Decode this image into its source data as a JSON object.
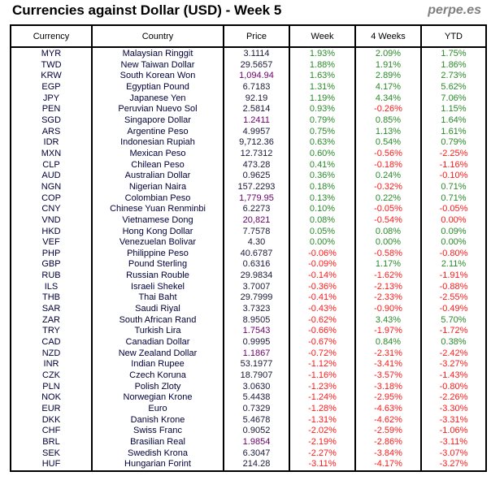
{
  "title": "Currencies against Dollar (USD) - Week 5",
  "brand": "perpe.es",
  "colors": {
    "positive": "#2a8a2a",
    "negative": "#ff1a1a"
  },
  "headers": [
    "Currency",
    "Country",
    "Price",
    "Week",
    "4 Weeks",
    "YTD"
  ],
  "rows": [
    [
      "MYR",
      "Malaysian Ringgit",
      "3.1114",
      "1.93%",
      "2.09%",
      "1.75%"
    ],
    [
      "TWD",
      "New Taiwan Dollar",
      "29.5657",
      "1.88%",
      "1.91%",
      "1.86%"
    ],
    [
      "KRW",
      "South Korean Won",
      "1,094.94",
      "1.63%",
      "2.89%",
      "2.73%"
    ],
    [
      "EGP",
      "Egyptian Pound",
      "6.7183",
      "1.31%",
      "4.17%",
      "5.62%"
    ],
    [
      "JPY",
      "Japanese Yen",
      "92.19",
      "1.19%",
      "4.34%",
      "7.06%"
    ],
    [
      "PEN",
      "Peruvian Nuevo Sol",
      "2.5814",
      "0.93%",
      "-0.26%",
      "1.15%"
    ],
    [
      "SGD",
      "Singapore Dollar",
      "1.2411",
      "0.79%",
      "0.85%",
      "1.64%"
    ],
    [
      "ARS",
      "Argentine Peso",
      "4.9957",
      "0.75%",
      "1.13%",
      "1.61%"
    ],
    [
      "IDR",
      "Indonesian Rupiah",
      "9,712.36",
      "0.63%",
      "0.54%",
      "0.79%"
    ],
    [
      "MXN",
      "Mexican Peso",
      "12.7312",
      "0.60%",
      "-0.56%",
      "-2.25%"
    ],
    [
      "CLP",
      "Chilean Peso",
      "473.28",
      "0.41%",
      "-0.18%",
      "-1.16%"
    ],
    [
      "AUD",
      "Australian Dollar",
      "0.9625",
      "0.36%",
      "0.24%",
      "-0.10%"
    ],
    [
      "NGN",
      "Nigerian Naira",
      "157.2293",
      "0.18%",
      "-0.32%",
      "0.71%"
    ],
    [
      "COP",
      "Colombian Peso",
      "1,779.95",
      "0.13%",
      "0.22%",
      "0.71%"
    ],
    [
      "CNY",
      "Chinese Yuan Renminbi",
      "6.2273",
      "0.10%",
      "-0.05%",
      "-0.05%"
    ],
    [
      "VND",
      "Vietnamese Dong",
      "20,821",
      "0.08%",
      "-0.54%",
      "0.00%"
    ],
    [
      "HKD",
      "Hong Kong Dollar",
      "7.7578",
      "0.05%",
      "0.08%",
      "0.09%"
    ],
    [
      "VEF",
      "Venezuelan Bolivar",
      "4.30",
      "0.00%",
      "0.00%",
      "0.00%"
    ],
    [
      "PHP",
      "Philippine Peso",
      "40.6787",
      "-0.06%",
      "-0.58%",
      "-0.80%"
    ],
    [
      "GBP",
      "Pound Sterling",
      "0.6316",
      "-0.09%",
      "1.17%",
      "2.11%"
    ],
    [
      "RUB",
      "Russian Rouble",
      "29.9834",
      "-0.14%",
      "-1.62%",
      "-1.91%"
    ],
    [
      "ILS",
      "Israeli Shekel",
      "3.7007",
      "-0.36%",
      "-2.13%",
      "-0.88%"
    ],
    [
      "THB",
      "Thai Baht",
      "29.7999",
      "-0.41%",
      "-2.33%",
      "-2.55%"
    ],
    [
      "SAR",
      "Saudi Riyal",
      "3.7323",
      "-0.43%",
      "-0.90%",
      "-0.49%"
    ],
    [
      "ZAR",
      "South African Rand",
      "8.9505",
      "-0.62%",
      "3.43%",
      "5.70%"
    ],
    [
      "TRY",
      "Turkish Lira",
      "1.7543",
      "-0.66%",
      "-1.97%",
      "-1.72%"
    ],
    [
      "CAD",
      "Canadian Dollar",
      "0.9995",
      "-0.67%",
      "0.84%",
      "0.38%"
    ],
    [
      "NZD",
      "New Zealand Dollar",
      "1.1867",
      "-0.72%",
      "-2.31%",
      "-2.42%"
    ],
    [
      "INR",
      "Indian Rupee",
      "53.1977",
      "-1.12%",
      "-3.41%",
      "-3.27%"
    ],
    [
      "CZK",
      "Czech Koruna",
      "18.7907",
      "-1.16%",
      "-3.57%",
      "-1.43%"
    ],
    [
      "PLN",
      "Polish Zloty",
      "3.0630",
      "-1.23%",
      "-3.18%",
      "-0.80%"
    ],
    [
      "NOK",
      "Norwegian Krone",
      "5.4438",
      "-1.24%",
      "-2.95%",
      "-2.26%"
    ],
    [
      "EUR",
      "Euro",
      "0.7329",
      "-1.28%",
      "-4.63%",
      "-3.30%"
    ],
    [
      "DKK",
      "Danish Krone",
      "5.4678",
      "-1.31%",
      "-4.62%",
      "-3.31%"
    ],
    [
      "CHF",
      "Swiss Franc",
      "0.9052",
      "-2.02%",
      "-2.59%",
      "-1.06%"
    ],
    [
      "BRL",
      "Brasilian Real",
      "1.9854",
      "-2.19%",
      "-2.86%",
      "-3.11%"
    ],
    [
      "SEK",
      "Swedish Krona",
      "6.3047",
      "-2.27%",
      "-3.84%",
      "-3.07%"
    ],
    [
      "HUF",
      "Hungarian Forint",
      "214.28",
      "-3.11%",
      "-4.17%",
      "-3.27%"
    ]
  ],
  "purple_price_codes": [
    "KRW",
    "SGD",
    "COP",
    "VND",
    "TRY",
    "NZD",
    "BRL"
  ],
  "red_zero_codes": [
    "VND"
  ]
}
